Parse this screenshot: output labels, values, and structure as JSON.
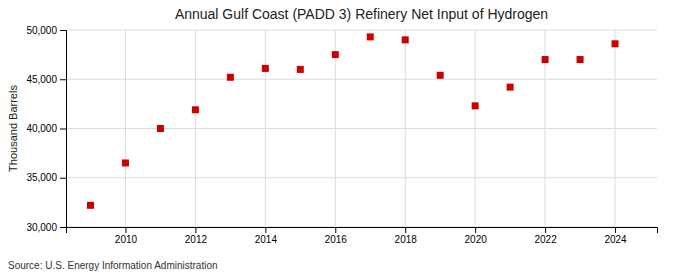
{
  "chart_data": {
    "type": "scatter",
    "title": "Annual Gulf Coast (PADD 3) Refinery Net Input of Hydrogen",
    "ylabel": "Thousand Barrels",
    "source": "Source: U.S. Energy Information Administration",
    "x": [
      2009,
      2010,
      2011,
      2012,
      2013,
      2014,
      2015,
      2016,
      2017,
      2018,
      2019,
      2020,
      2021,
      2022,
      2023,
      2024
    ],
    "values": [
      32200,
      36500,
      40000,
      41900,
      45200,
      46100,
      46000,
      47500,
      49300,
      49000,
      45400,
      42300,
      44200,
      47000,
      47000,
      48600
    ],
    "color": "#cc0000",
    "marker": "square",
    "xlim": [
      2008.3,
      2025.2
    ],
    "xticks": [
      2010,
      2012,
      2014,
      2016,
      2018,
      2020,
      2022,
      2024
    ],
    "ylim": [
      30000,
      50000
    ],
    "yticks": [
      {
        "value": 30000,
        "label": "30,000"
      },
      {
        "value": 35000,
        "label": "35,000"
      },
      {
        "value": 40000,
        "label": "40,000"
      },
      {
        "value": 45000,
        "label": "45,000"
      },
      {
        "value": 50000,
        "label": "50,000"
      }
    ],
    "grid": true
  }
}
